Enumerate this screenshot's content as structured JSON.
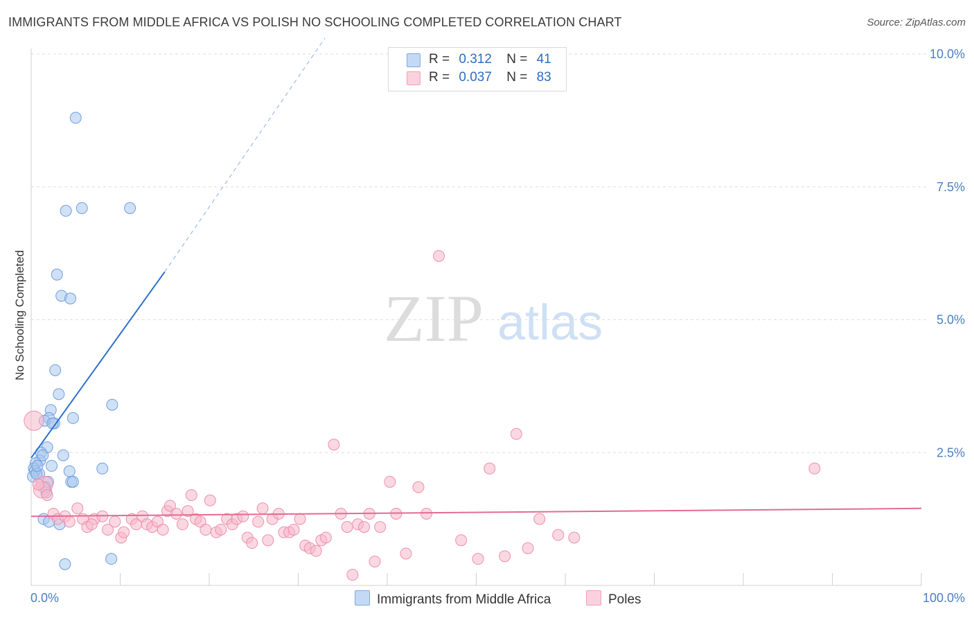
{
  "title": "IMMIGRANTS FROM MIDDLE AFRICA VS POLISH NO SCHOOLING COMPLETED CORRELATION CHART",
  "source": "Source: ZipAtlas.com",
  "watermark": {
    "zip": "ZIP",
    "atlas": "atlas"
  },
  "legend": {
    "rows": [
      {
        "r_label": "R =",
        "r_value": "0.312",
        "n_label": "N =",
        "n_value": "41",
        "color": "#a9c8ef"
      },
      {
        "r_label": "R =",
        "r_value": "0.037",
        "n_label": "N =",
        "n_value": "83",
        "color": "#f6b8ca"
      }
    ]
  },
  "bottom_legend": [
    {
      "label": "Immigrants from Middle Africa",
      "color": "#a9c8ef"
    },
    {
      "label": "Poles",
      "color": "#f6b8ca"
    }
  ],
  "chart_data": {
    "type": "scatter",
    "title": "IMMIGRANTS FROM MIDDLE AFRICA VS POLISH NO SCHOOLING COMPLETED CORRELATION CHART",
    "xlabel": "",
    "ylabel": "No Schooling Completed",
    "xlim": [
      0,
      100
    ],
    "ylim": [
      0,
      10.5
    ],
    "x_tick_labels": [
      "0.0%",
      "100.0%"
    ],
    "y_ticks": [
      2.5,
      5.0,
      7.5,
      10.0
    ],
    "y_tick_labels": [
      "2.5%",
      "5.0%",
      "7.5%",
      "10.0%"
    ],
    "grid": true,
    "series": [
      {
        "name": "Immigrants from Middle Africa",
        "color": "#6f9ede",
        "fill": "#a9c8ef",
        "trend": {
          "x0": 0.0,
          "y0": 2.4,
          "x1": 15.0,
          "y1": 5.9,
          "dash_x1": 33.0,
          "dash_y1": 10.3,
          "color": "#2a6fcb"
        },
        "points": [
          [
            5.0,
            8.8
          ],
          [
            5.7,
            7.1
          ],
          [
            3.9,
            7.05
          ],
          [
            11.1,
            7.1
          ],
          [
            2.9,
            5.85
          ],
          [
            3.4,
            5.45
          ],
          [
            4.4,
            5.4
          ],
          [
            2.7,
            4.05
          ],
          [
            3.1,
            3.6
          ],
          [
            9.1,
            3.4
          ],
          [
            2.2,
            3.3
          ],
          [
            2.0,
            3.15
          ],
          [
            1.5,
            3.1
          ],
          [
            2.6,
            3.05
          ],
          [
            4.7,
            3.15
          ],
          [
            1.8,
            2.6
          ],
          [
            1.1,
            2.5
          ],
          [
            3.6,
            2.45
          ],
          [
            1.0,
            2.35
          ],
          [
            0.5,
            2.3
          ],
          [
            0.3,
            2.2
          ],
          [
            2.3,
            2.25
          ],
          [
            8.0,
            2.2
          ],
          [
            0.9,
            2.1
          ],
          [
            0.4,
            2.15
          ],
          [
            0.2,
            2.05
          ],
          [
            4.3,
            2.15
          ],
          [
            1.9,
            1.95
          ],
          [
            4.5,
            1.95
          ],
          [
            4.7,
            1.95
          ],
          [
            1.6,
            1.85
          ],
          [
            1.7,
            1.75
          ],
          [
            1.4,
            1.25
          ],
          [
            2.0,
            1.2
          ],
          [
            3.2,
            1.15
          ],
          [
            9.0,
            0.5
          ],
          [
            3.8,
            0.4
          ],
          [
            0.6,
            2.1
          ],
          [
            1.3,
            2.45
          ],
          [
            2.4,
            3.05
          ],
          [
            0.7,
            2.25
          ]
        ]
      },
      {
        "name": "Poles",
        "color": "#ee8fae",
        "fill": "#f6b8ca",
        "trend": {
          "x0": 0.0,
          "y0": 1.3,
          "x1": 100.0,
          "y1": 1.45,
          "color": "#e36a93"
        },
        "points": [
          [
            0.3,
            3.1
          ],
          [
            1.5,
            1.9
          ],
          [
            1.2,
            1.8
          ],
          [
            1.8,
            1.7
          ],
          [
            2.5,
            1.35
          ],
          [
            3.0,
            1.25
          ],
          [
            3.8,
            1.3
          ],
          [
            4.3,
            1.2
          ],
          [
            5.2,
            1.45
          ],
          [
            5.8,
            1.25
          ],
          [
            6.3,
            1.1
          ],
          [
            7.1,
            1.25
          ],
          [
            8.0,
            1.3
          ],
          [
            8.6,
            1.05
          ],
          [
            9.4,
            1.2
          ],
          [
            10.1,
            0.9
          ],
          [
            10.4,
            1.0
          ],
          [
            11.3,
            1.25
          ],
          [
            11.8,
            1.15
          ],
          [
            12.5,
            1.3
          ],
          [
            13.0,
            1.15
          ],
          [
            13.6,
            1.1
          ],
          [
            14.2,
            1.2
          ],
          [
            14.8,
            1.05
          ],
          [
            15.3,
            1.4
          ],
          [
            15.6,
            1.5
          ],
          [
            16.3,
            1.35
          ],
          [
            17.0,
            1.15
          ],
          [
            17.6,
            1.4
          ],
          [
            18.0,
            1.7
          ],
          [
            18.5,
            1.25
          ],
          [
            19.0,
            1.2
          ],
          [
            19.6,
            1.05
          ],
          [
            20.1,
            1.6
          ],
          [
            20.8,
            1.0
          ],
          [
            21.3,
            1.05
          ],
          [
            22.0,
            1.25
          ],
          [
            22.6,
            1.15
          ],
          [
            23.1,
            1.25
          ],
          [
            23.8,
            1.3
          ],
          [
            24.3,
            0.9
          ],
          [
            24.8,
            0.8
          ],
          [
            25.5,
            1.2
          ],
          [
            26.0,
            1.45
          ],
          [
            26.6,
            0.85
          ],
          [
            27.1,
            1.25
          ],
          [
            27.8,
            1.35
          ],
          [
            28.4,
            1.0
          ],
          [
            29.0,
            1.0
          ],
          [
            29.5,
            1.05
          ],
          [
            30.2,
            1.25
          ],
          [
            30.8,
            0.75
          ],
          [
            31.3,
            0.7
          ],
          [
            32.0,
            0.65
          ],
          [
            32.6,
            0.85
          ],
          [
            33.1,
            0.9
          ],
          [
            34.0,
            2.65
          ],
          [
            34.8,
            1.35
          ],
          [
            35.5,
            1.1
          ],
          [
            36.1,
            0.2
          ],
          [
            36.7,
            1.15
          ],
          [
            37.4,
            1.1
          ],
          [
            38.0,
            1.35
          ],
          [
            38.6,
            0.45
          ],
          [
            39.2,
            1.1
          ],
          [
            40.3,
            1.95
          ],
          [
            41.0,
            1.35
          ],
          [
            42.1,
            0.6
          ],
          [
            43.5,
            1.85
          ],
          [
            44.4,
            1.35
          ],
          [
            45.8,
            6.2
          ],
          [
            48.3,
            0.85
          ],
          [
            50.2,
            0.5
          ],
          [
            51.5,
            2.2
          ],
          [
            53.2,
            0.55
          ],
          [
            54.5,
            2.85
          ],
          [
            55.8,
            0.7
          ],
          [
            57.1,
            1.25
          ],
          [
            59.2,
            0.95
          ],
          [
            61.0,
            0.9
          ],
          [
            88.0,
            2.2
          ],
          [
            0.8,
            1.9
          ],
          [
            6.8,
            1.15
          ]
        ]
      }
    ]
  }
}
